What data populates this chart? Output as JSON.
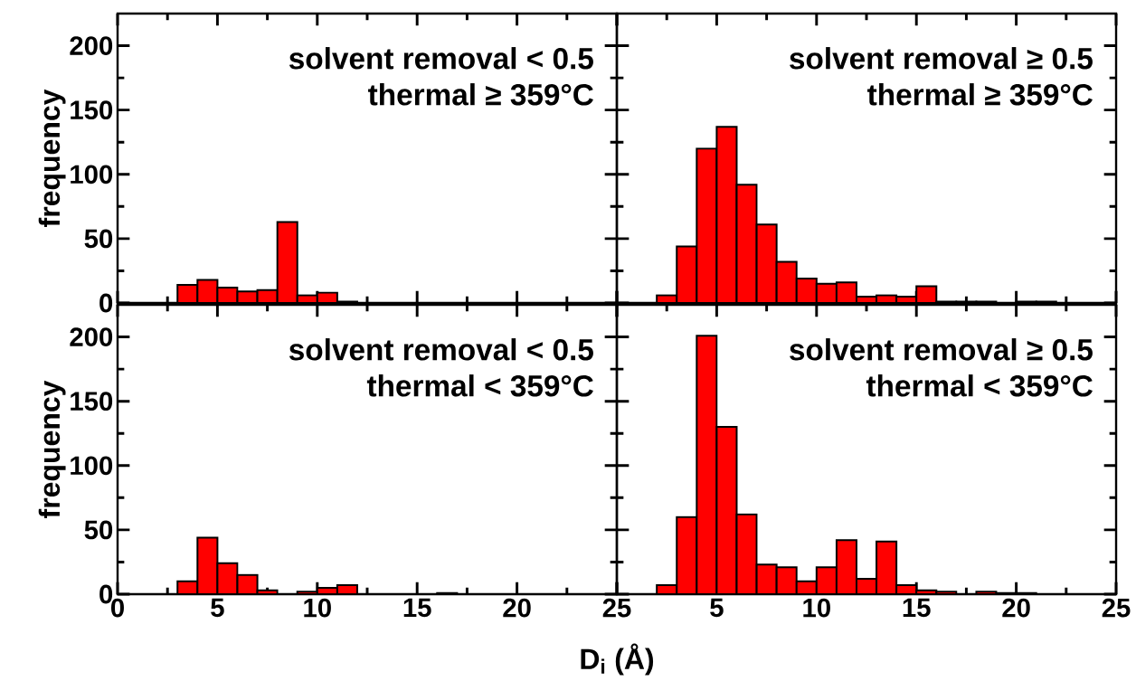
{
  "chart_data": [
    {
      "type": "histogram",
      "ylabel": "frequency",
      "annotations": [
        "solvent removal < 0.5",
        "thermal ≥ 359°C"
      ],
      "color": "#ff0000",
      "xlim": [
        0,
        25
      ],
      "ylim": [
        0,
        225
      ],
      "xticks": [
        0,
        5,
        10,
        15,
        20,
        25
      ],
      "yticks": [
        0,
        50,
        100,
        150,
        200
      ],
      "tick_labels": "y",
      "bins": [
        3,
        4,
        5,
        6,
        7,
        8,
        9,
        10,
        11,
        12
      ],
      "values": [
        14,
        18,
        12,
        9,
        10,
        63,
        6,
        8,
        1
      ]
    },
    {
      "type": "histogram",
      "annotations": [
        "solvent removal ≥ 0.5",
        "thermal ≥ 359°C"
      ],
      "color": "#ff0000",
      "xlim": [
        0,
        25
      ],
      "ylim": [
        0,
        225
      ],
      "xticks": [
        0,
        5,
        10,
        15,
        20,
        25
      ],
      "yticks": [
        0,
        50,
        100,
        150,
        200
      ],
      "tick_labels": false,
      "bins": [
        2,
        3,
        4,
        5,
        6,
        7,
        8,
        9,
        10,
        11,
        12,
        13,
        14,
        15,
        16,
        17,
        18,
        19,
        20,
        21,
        22
      ],
      "values": [
        6,
        44,
        120,
        137,
        92,
        61,
        32,
        19,
        15,
        16,
        5,
        6,
        5,
        13,
        1,
        1,
        1,
        0,
        1,
        1
      ]
    },
    {
      "type": "histogram",
      "ylabel": "frequency",
      "xlabel": "D$_{i}$ (Å)",
      "annotations": [
        "solvent removal < 0.5",
        "thermal < 359°C"
      ],
      "color": "#ff0000",
      "xlim": [
        0,
        25
      ],
      "ylim": [
        0,
        225
      ],
      "xticks": [
        0,
        5,
        10,
        15,
        20,
        25
      ],
      "yticks": [
        0,
        50,
        100,
        150,
        200
      ],
      "bins": [
        3,
        4,
        5,
        6,
        7,
        8,
        9,
        10,
        11,
        12,
        13,
        14,
        15,
        16,
        17
      ],
      "values": [
        10,
        44,
        24,
        15,
        3,
        0,
        2,
        5,
        7,
        0,
        0,
        0,
        0,
        1
      ]
    },
    {
      "type": "histogram",
      "annotations": [
        "solvent removal ≥ 0.5",
        "thermal < 359°C"
      ],
      "color": "#ff0000",
      "xlim": [
        0,
        25
      ],
      "ylim": [
        0,
        225
      ],
      "xticks": [
        {
          "value": 0,
          "label": null
        },
        5,
        10,
        15,
        20,
        25
      ],
      "yticks": [
        0,
        50,
        100,
        150,
        200
      ],
      "tick_labels": "x",
      "bins": [
        2,
        3,
        4,
        5,
        6,
        7,
        8,
        9,
        10,
        11,
        12,
        13,
        14,
        15,
        16,
        17,
        18,
        19,
        20,
        21
      ],
      "values": [
        7,
        60,
        201,
        130,
        62,
        23,
        21,
        10,
        21,
        42,
        12,
        41,
        7,
        3,
        2,
        0,
        2,
        1,
        1
      ]
    }
  ]
}
